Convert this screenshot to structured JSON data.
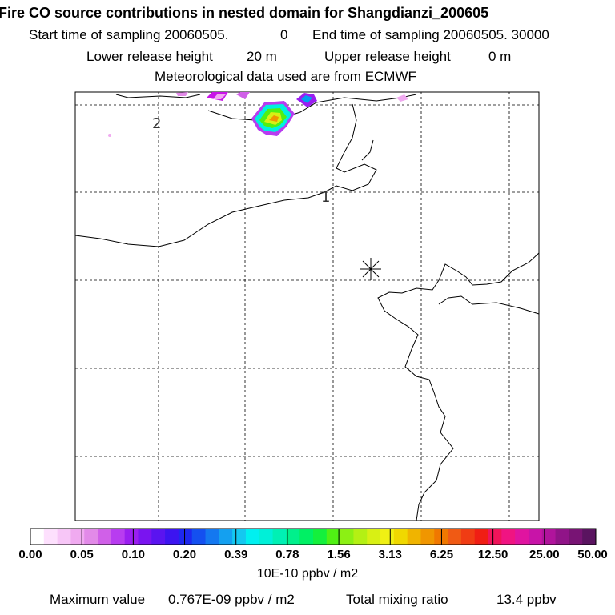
{
  "header": {
    "title": "Fire CO source contributions in nested domain for Shangdianzi_200605",
    "start_label": "Start time of sampling 20060505.",
    "start_value": "0",
    "end_label": "End time of sampling 20060505. 30000",
    "lower_label": "Lower release height",
    "lower_value": "20 m",
    "upper_label": "Upper release height",
    "upper_value": "0 m",
    "met_line": "Meteorological data used are from ECMWF"
  },
  "map": {
    "contour_labels": [
      "2",
      "1"
    ],
    "station_marker": "station-asterisk"
  },
  "colorbar": {
    "ticks": [
      "0.00",
      "0.05",
      "0.10",
      "0.20",
      "0.39",
      "0.78",
      "1.56",
      "3.13",
      "6.25",
      "12.50",
      "25.00",
      "50.00"
    ],
    "colors": [
      "#ffffff",
      "#fde0fd",
      "#f7c6f7",
      "#f0aaf0",
      "#e28ae8",
      "#d060e8",
      "#b83cf0",
      "#9a1ef0",
      "#7a14f0",
      "#5a14f0",
      "#3c14f0",
      "#1e28f0",
      "#1450f0",
      "#1478f0",
      "#14a0f0",
      "#14c8f0",
      "#00f0f0",
      "#00f0d8",
      "#00f0b4",
      "#00f08c",
      "#00f064",
      "#14f03c",
      "#50f014",
      "#8cf014",
      "#b4f014",
      "#d8f014",
      "#f0f014",
      "#f0d800",
      "#f0b400",
      "#f09600",
      "#f07800",
      "#f05a14",
      "#f03c14",
      "#f01e14",
      "#f0145a",
      "#f01482",
      "#e014a0",
      "#c814a8",
      "#b0149c",
      "#901488",
      "#781474",
      "#5a1460"
    ],
    "units": "10E-10 ppbv / m2"
  },
  "footer": {
    "max_label": "Maximum value",
    "max_value": "0.767E-09 ppbv / m2",
    "total_label": "Total mixing ratio",
    "total_value": "13.4 ppbv"
  }
}
